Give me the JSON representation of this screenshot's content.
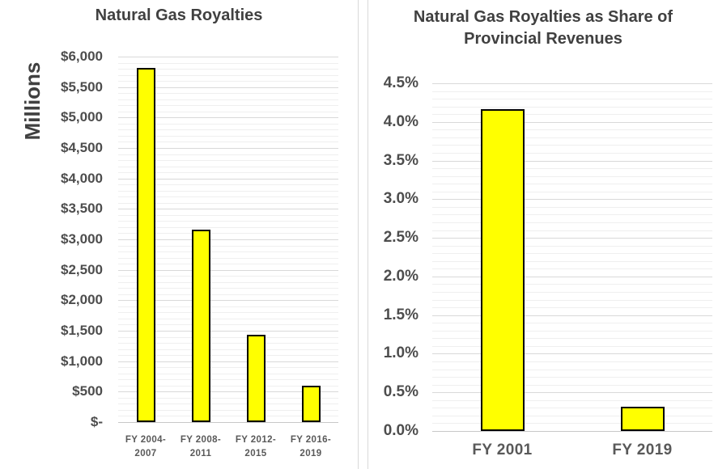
{
  "page": {
    "background": "#FFFFFF"
  },
  "colors": {
    "bar_fill": "#FFFF00",
    "bar_border": "#000000",
    "grid_major": "#D9D9D9",
    "grid_minor": "#EFEFEF",
    "axis_line": "#C8C8C8",
    "title_text": "#404040",
    "tick_text": "#4D4D4D",
    "category_text": "#595959"
  },
  "chart_data": [
    {
      "type": "bar",
      "title": "Natural Gas Royalties",
      "ylabel": "Millions",
      "xlabel": "",
      "categories": [
        [
          "FY 2004-",
          "2007"
        ],
        [
          "FY 2008-",
          "2011"
        ],
        [
          "FY 2012-",
          "2015"
        ],
        [
          "FY 2016-",
          "2019"
        ]
      ],
      "values": [
        5810,
        3160,
        1435,
        600
      ],
      "ylim": [
        0,
        6000
      ],
      "major_unit": 500,
      "minor_unit": 100,
      "ytick_labels": [
        "$-",
        "$500",
        "$1,000",
        "$1,500",
        "$2,000",
        "$2,500",
        "$3,000",
        "$3,500",
        "$4,000",
        "$4,500",
        "$5,000",
        "$5,500",
        "$6,000"
      ],
      "legend": "none",
      "grid": "on"
    },
    {
      "type": "bar",
      "title": "Natural Gas Royalties as Share of Provincial Revenues",
      "ylabel": "",
      "xlabel": "",
      "categories": [
        [
          "FY 2001"
        ],
        [
          "FY 2019"
        ]
      ],
      "values": [
        4.17,
        0.31
      ],
      "ylim": [
        0,
        4.5
      ],
      "major_unit": 0.5,
      "minor_unit": 0.1,
      "ytick_labels": [
        "0.0%",
        "0.5%",
        "1.0%",
        "1.5%",
        "2.0%",
        "2.5%",
        "3.0%",
        "3.5%",
        "4.0%",
        "4.5%"
      ],
      "legend": "none",
      "grid": "on"
    }
  ]
}
